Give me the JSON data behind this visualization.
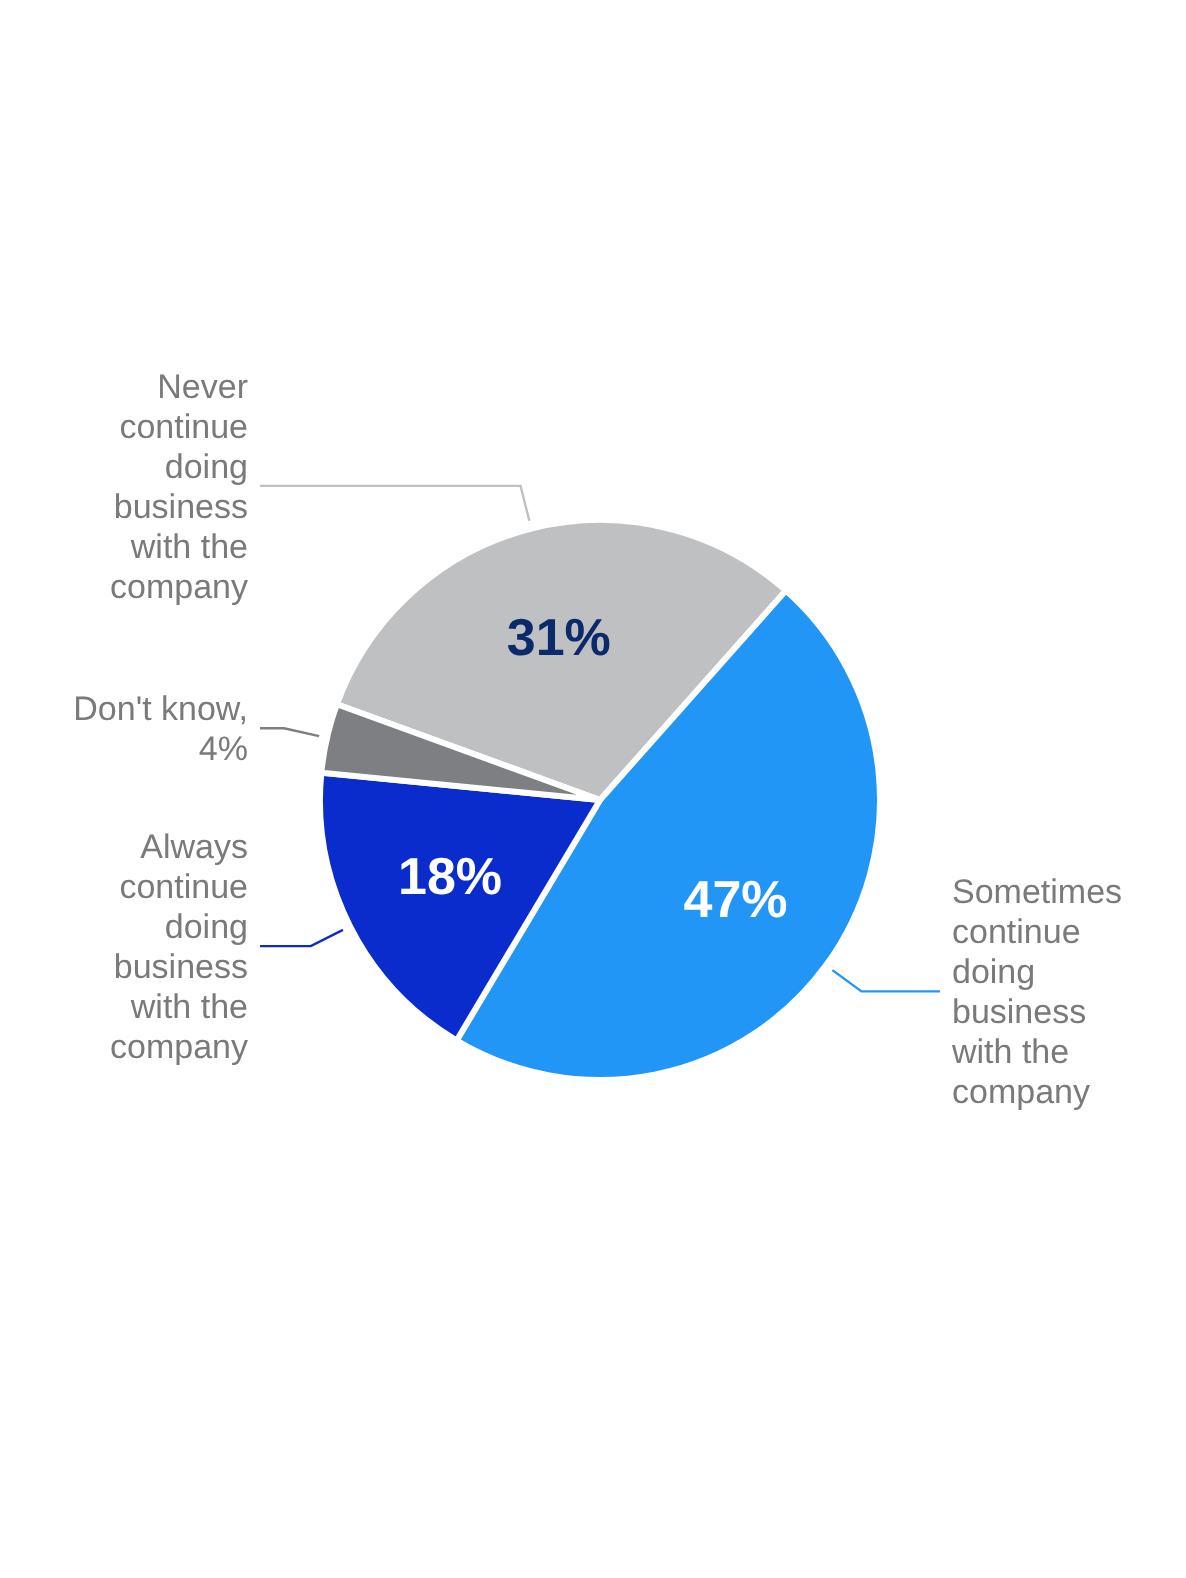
{
  "chart_data": {
    "type": "pie",
    "categories": [
      "Never continue doing business with the company",
      "Sometimes continue doing business with the company",
      "Always continue doing business with the company",
      "Don't know, 4%"
    ],
    "values": [
      31,
      47,
      18,
      4
    ],
    "colors": [
      "#bfc0c2",
      "#2196f7",
      "#0a2ccc",
      "#7d7f82"
    ],
    "value_labels": [
      "31%",
      "47%",
      "18%",
      null
    ]
  }
}
